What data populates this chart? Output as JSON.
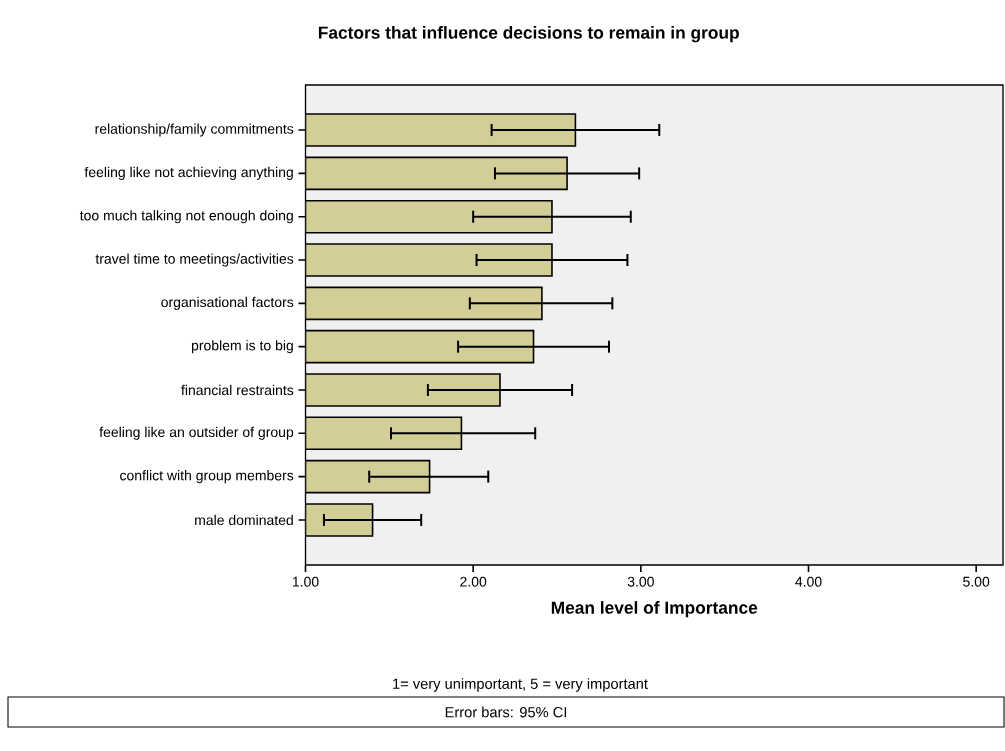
{
  "chart_data": {
    "type": "bar",
    "orientation": "horizontal",
    "title": "Factors that influence decisions to remain in group",
    "xlabel": "Mean level of Importance",
    "categories": [
      "relationship/family commitments",
      "feeling like not achieving anything",
      "too much talking not enough doing",
      "travel time to meetings/activities",
      "organisational factors",
      "problem is to big",
      "financial restraints",
      "feeling like an outsider of group",
      "conflict with group members",
      "male dominated"
    ],
    "values": [
      2.61,
      2.56,
      2.47,
      2.47,
      2.41,
      2.36,
      2.16,
      1.93,
      1.74,
      1.4
    ],
    "errors": [
      [
        2.11,
        3.11
      ],
      [
        2.13,
        2.99
      ],
      [
        2.0,
        2.94
      ],
      [
        2.02,
        2.92
      ],
      [
        1.98,
        2.83
      ],
      [
        1.91,
        2.81
      ],
      [
        1.73,
        2.59
      ],
      [
        1.51,
        2.37
      ],
      [
        1.38,
        2.09
      ],
      [
        1.11,
        1.69
      ]
    ],
    "color": "#d3ce98",
    "xlim": [
      1,
      5.16
    ],
    "xticks": [
      {
        "value": 1,
        "label": "1.00"
      },
      {
        "value": 2,
        "label": "2.00"
      },
      {
        "value": 3,
        "label": "3.00"
      },
      {
        "value": 4,
        "label": "4.00"
      },
      {
        "value": 5,
        "label": "5.00"
      }
    ],
    "grid": false,
    "annotations": [
      "1= very unimportant, 5 = very important",
      "Error bars: 95% CI"
    ]
  }
}
